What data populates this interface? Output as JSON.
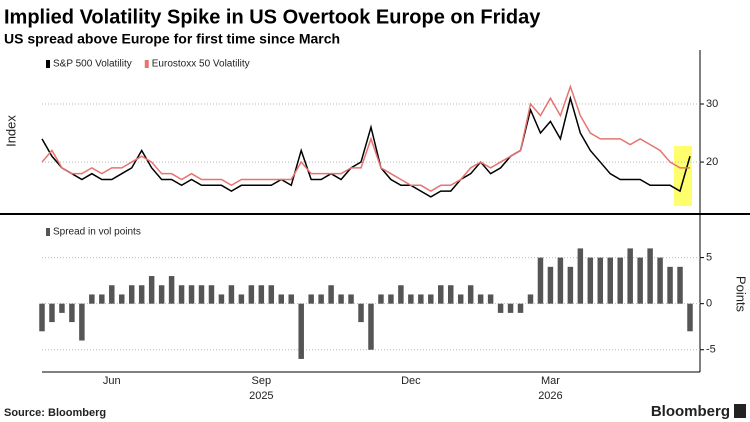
{
  "source": "Source: Bloomberg",
  "brand": "Bloomberg",
  "chart_data": [
    {
      "type": "line",
      "title": "Implied Volatility Spike in US Overtook Europe on Friday",
      "subtitle": "US spread above Europe for first time since March",
      "y_label": "Index",
      "ylim": [
        11.4,
        39.3
      ],
      "yticks": [
        20,
        30
      ],
      "grid": true,
      "series": [
        {
          "name": "S&P 500 Volatility",
          "color": "#000000",
          "values": [
            24,
            21,
            19,
            18,
            17,
            18,
            17,
            17,
            18,
            19,
            22,
            19,
            17,
            17,
            16,
            17,
            16,
            16,
            16,
            15,
            16,
            16,
            16,
            16,
            17,
            16,
            22,
            17,
            17,
            18,
            17,
            19,
            20,
            26,
            19,
            17,
            16,
            16,
            15,
            14,
            15,
            15,
            17,
            18,
            20,
            18,
            19,
            21,
            22,
            29,
            25,
            27,
            24,
            31,
            25,
            22,
            20,
            18,
            17,
            17,
            17,
            16,
            16,
            16,
            15,
            21
          ]
        },
        {
          "name": "Eurostoxx 50 Volatility",
          "color": "#e8736f",
          "values": [
            20,
            22,
            19,
            18,
            18,
            19,
            18,
            19,
            19,
            20,
            21,
            20,
            18,
            18,
            17,
            18,
            17,
            17,
            17,
            16,
            17,
            17,
            17,
            17,
            17,
            17,
            20,
            18,
            18,
            18,
            18,
            19,
            19,
            24,
            19,
            18,
            17,
            16,
            16,
            15,
            16,
            16,
            17,
            19,
            20,
            19,
            20,
            21,
            22,
            30,
            28,
            31,
            28,
            33,
            28,
            25,
            24,
            24,
            24,
            23,
            24,
            23,
            22,
            20,
            19,
            19
          ]
        }
      ]
    },
    {
      "type": "bar",
      "y_label": "Points",
      "ylim": [
        -7.2,
        9.3
      ],
      "yticks": [
        -5,
        0,
        5
      ],
      "grid": true,
      "categories": [
        null,
        null,
        null,
        null,
        null,
        null,
        null,
        "Jun",
        null,
        null,
        null,
        null,
        null,
        null,
        null,
        null,
        null,
        null,
        null,
        null,
        null,
        null,
        "Sep",
        null,
        null,
        null,
        null,
        null,
        null,
        null,
        null,
        null,
        null,
        null,
        null,
        null,
        null,
        "Dec",
        null,
        null,
        null,
        null,
        null,
        null,
        null,
        null,
        null,
        null,
        null,
        null,
        null,
        "Mar",
        null,
        null,
        null,
        null,
        null,
        null,
        null,
        null,
        null,
        null,
        null,
        null,
        null,
        null
      ],
      "year_categories": [
        null,
        null,
        null,
        null,
        null,
        null,
        null,
        null,
        null,
        null,
        null,
        null,
        null,
        null,
        null,
        null,
        null,
        null,
        null,
        null,
        null,
        null,
        "2025",
        null,
        null,
        null,
        null,
        null,
        null,
        null,
        null,
        null,
        null,
        null,
        null,
        null,
        null,
        null,
        null,
        null,
        null,
        null,
        null,
        null,
        null,
        null,
        null,
        null,
        null,
        null,
        null,
        "2026",
        null,
        null,
        null,
        null,
        null,
        null,
        null,
        null,
        null,
        null,
        null,
        null,
        null,
        null
      ],
      "series": [
        {
          "name": "Spread in vol points",
          "color": "#555555",
          "values": [
            -3,
            -2,
            -1,
            -2,
            -4,
            1,
            1,
            2,
            1,
            2,
            2,
            3,
            2,
            3,
            2,
            2,
            2,
            2,
            1,
            2,
            1,
            2,
            2,
            2,
            1,
            1,
            -6,
            1,
            1,
            2,
            1,
            1,
            -2,
            -5,
            1,
            1,
            2,
            1,
            1,
            1,
            2,
            2,
            1,
            2,
            1,
            1,
            -1,
            -1,
            -1,
            1,
            5,
            4,
            5,
            4,
            6,
            5,
            5,
            5,
            5,
            6,
            5,
            6,
            5,
            4,
            4,
            -3
          ]
        }
      ]
    }
  ]
}
